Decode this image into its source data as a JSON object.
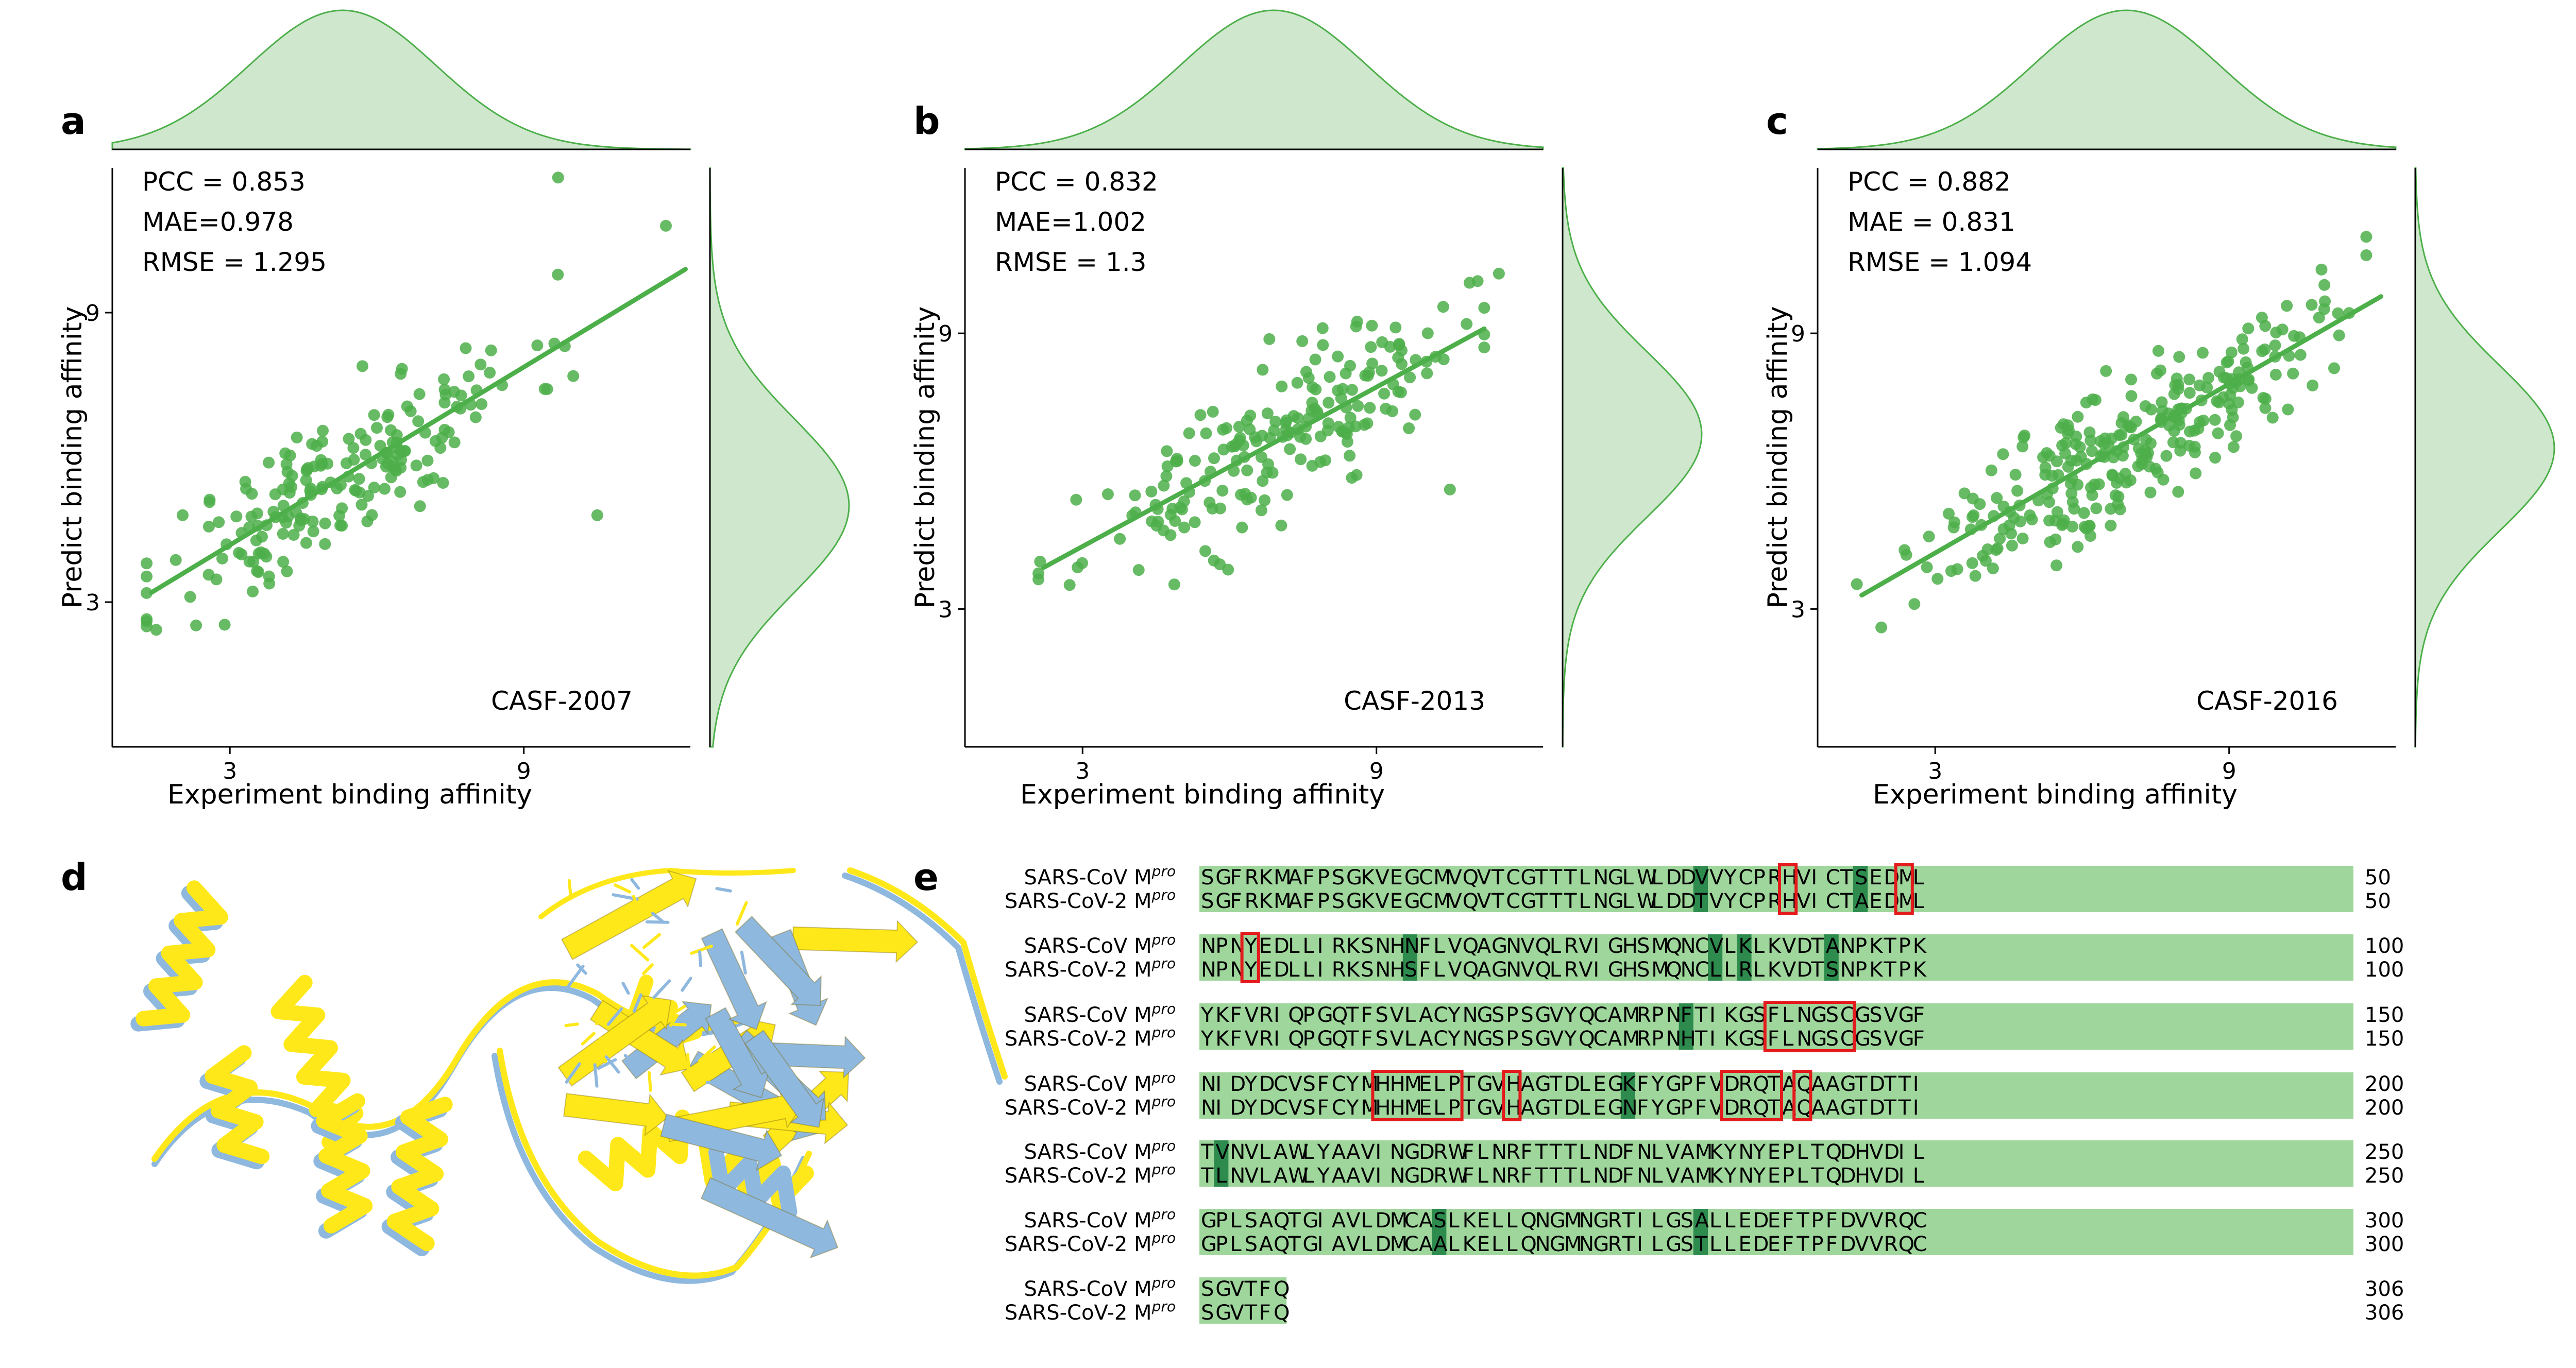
{
  "panels": [
    {
      "letter": "a",
      "stats": [
        "PCC = 0.853",
        "MAE=0.978",
        "RMSE = 1.295"
      ],
      "dataset": "CASF-2007"
    },
    {
      "letter": "b",
      "stats": [
        "PCC = 0.832",
        "MAE=1.002",
        "RMSE = 1.3"
      ],
      "dataset": "CASF-2013"
    },
    {
      "letter": "c",
      "stats": [
        "PCC = 0.882",
        "MAE = 0.831",
        "RMSE = 1.094"
      ],
      "dataset": "CASF-2016"
    }
  ],
  "chart_data": [
    {
      "type": "scatter",
      "title": "",
      "annotation": "CASF-2007",
      "xlabel": "Experiment binding affinity",
      "ylabel": "Predict binding affinity",
      "xlim": [
        0.6,
        12.4
      ],
      "ylim": [
        0.0,
        12.0
      ],
      "xticks": [
        3,
        9
      ],
      "yticks": [
        3,
        9
      ],
      "color": "#4daf4a",
      "fill_color": "#cfe8cd",
      "regression": {
        "x0": 1.4,
        "y0": 3.2,
        "x1": 12.3,
        "y1": 9.9
      },
      "stats": {
        "PCC": 0.853,
        "MAE": 0.978,
        "RMSE": 1.295
      },
      "x_density_mode": 5.3,
      "y_density_mode": 5.0,
      "n_points": 195
    },
    {
      "type": "scatter",
      "title": "",
      "annotation": "CASF-2013",
      "xlabel": "Experiment binding affinity",
      "ylabel": "Predict binding affinity",
      "xlim": [
        0.6,
        12.4
      ],
      "ylim": [
        0.0,
        12.6
      ],
      "xticks": [
        3,
        9
      ],
      "yticks": [
        3,
        9
      ],
      "color": "#4daf4a",
      "fill_color": "#cfe8cd",
      "regression": {
        "x0": 2.2,
        "y0": 3.9,
        "x1": 11.2,
        "y1": 9.1
      },
      "stats": {
        "PCC": 0.832,
        "MAE": 1.002,
        "RMSE": 1.3
      },
      "x_density_mode": 6.9,
      "y_density_mode": 6.8,
      "n_points": 195
    },
    {
      "type": "scatter",
      "title": "",
      "annotation": "CASF-2016",
      "xlabel": "Experiment binding affinity",
      "ylabel": "Predict binding affinity",
      "xlim": [
        0.6,
        12.4
      ],
      "ylim": [
        0.0,
        12.6
      ],
      "xticks": [
        3,
        9
      ],
      "yticks": [
        3,
        9
      ],
      "color": "#4daf4a",
      "fill_color": "#cfe8cd",
      "regression": {
        "x0": 1.5,
        "y0": 3.3,
        "x1": 12.1,
        "y1": 9.8
      },
      "stats": {
        "PCC": 0.882,
        "MAE": 0.831,
        "RMSE": 1.094
      },
      "x_density_mode": 6.9,
      "y_density_mode": 6.5,
      "n_points": 280
    }
  ],
  "structure": {
    "letter": "d",
    "colors": {
      "sars_cov": "#ffe81a",
      "sars_cov_2": "#8fb8de"
    }
  },
  "alignment": {
    "letter": "e",
    "labels": [
      "SARS-CoV M",
      "SARS-CoV-2 M"
    ],
    "label_superscript": "pro",
    "base_color": "#9fd69b",
    "diff_color": "#2e8b4e",
    "box_color": "#e41a1c",
    "blocks": [
      {
        "top": "SGFRKMAFPSGKVEGCMVQVTCGTTTLNGLWLDDVVYCPRHVICTSEDML",
        "bottom": "SGFRKMAFPSGKVEGCMVQVTCGTTTLNGLWLDDTVYCPRHVICTAEDML",
        "end": "50",
        "diffs": [
          34,
          45
        ],
        "boxes": [
          [
            40,
            40
          ],
          [
            48,
            48
          ]
        ]
      },
      {
        "top": "NPNYEDLLIRKSNHNFLVQAGNVQLRVIGHSMQNCVLKLKVDTANPKTPK",
        "bottom": "NPNYEDLLIRKSNHSFLVQAGNVQLRVIGHSMQNCLLRLKVDTSNPKTPK",
        "end": "100",
        "diffs": [
          14,
          35,
          37,
          43
        ],
        "boxes": [
          [
            3,
            3
          ]
        ]
      },
      {
        "top": "YKFVRIQPGQTFSVLACYNGSPSGVYQCAMRPNFTIKGSFLNGSCGSVGF",
        "bottom": "YKFVRIQPGQTFSVLACYNGSPSGVYQCAMRPNHTIKGSFLNGSCGSVGF",
        "end": "150",
        "diffs": [
          33
        ],
        "boxes": [
          [
            39,
            44
          ]
        ]
      },
      {
        "top": "NIDYDCVSFCYMHHMELPTGVHAGTDLEGKFYGPFVDRQTAQAAGTDTTI",
        "bottom": "NIDYDCVSFCYMHHMELPTGVHAGTDLEGNFYGPFVDRQTAQAAGTDTTI",
        "end": "200",
        "diffs": [
          29
        ],
        "boxes": [
          [
            12,
            17
          ],
          [
            21,
            21
          ],
          [
            36,
            39
          ],
          [
            41,
            41
          ]
        ]
      },
      {
        "top": "TVNVLAWLYAAVINGDRWFLNRFTTTLNDFNLVAMKYNYEPLTQDHVDIL",
        "bottom": "TLNVLAWLYAAVINGDRWFLNRFTTTLNDFNLVAMKYNYEPLTQDHVDIL",
        "end": "250",
        "diffs": [
          1
        ],
        "boxes": []
      },
      {
        "top": "GPLSAQTGIAVLDMCASLKELLQNGMNGRTILGSALLEDEFTPFDVVRQC",
        "bottom": "GPLSAQTGIAVLDMCAALKELLQNGMNGRTILGSTLLEDEFTPFDVVRQC",
        "end": "300",
        "diffs": [
          16,
          34
        ],
        "boxes": []
      },
      {
        "top": "SGVTFQ",
        "bottom": "SGVTFQ",
        "end": "306",
        "diffs": [],
        "boxes": []
      }
    ]
  }
}
